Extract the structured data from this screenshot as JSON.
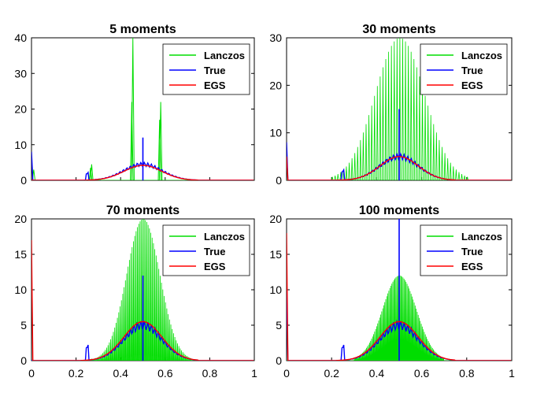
{
  "chart_data": [
    {
      "type": "line",
      "title": "5 moments",
      "xlim": [
        0,
        1
      ],
      "ylim": [
        0,
        40
      ],
      "yticks": [
        0,
        10,
        20,
        30,
        40
      ],
      "xticks": [],
      "legend": {
        "placement": "top-right",
        "entries": [
          "Lanczos",
          "True",
          "EGS"
        ]
      },
      "series": [
        {
          "name": "Lanczos",
          "color": "#00dd00",
          "style": "spikes",
          "x": [
            0.01,
            0.265,
            0.27,
            0.45,
            0.455,
            0.575,
            0.58
          ],
          "values": [
            3,
            3.5,
            4.5,
            22,
            40,
            17,
            22
          ]
        },
        {
          "name": "True",
          "color": "#0000ff",
          "style": "density",
          "peak_x": 0.5,
          "peak_y": 4.5,
          "spike_x": 0.5,
          "spike_y": 12,
          "edge_y": 8
        },
        {
          "name": "EGS",
          "color": "#ff0000",
          "style": "density",
          "peak_x": 0.5,
          "peak_y": 4.2,
          "edge_y": 0
        }
      ]
    },
    {
      "type": "line",
      "title": "30 moments",
      "xlim": [
        0,
        1
      ],
      "ylim": [
        0,
        30
      ],
      "yticks": [
        0,
        10,
        20,
        30
      ],
      "xticks": [],
      "legend": {
        "placement": "top-right",
        "entries": [
          "Lanczos",
          "True",
          "EGS"
        ]
      },
      "series": [
        {
          "name": "Lanczos",
          "color": "#00dd00",
          "style": "comb",
          "center": 0.5,
          "spread": 0.11,
          "peak": 30,
          "step": 0.0125,
          "x_range": [
            0.2,
            0.8
          ]
        },
        {
          "name": "True",
          "color": "#0000ff",
          "style": "density",
          "peak_x": 0.5,
          "peak_y": 5,
          "spike_x": 0.5,
          "spike_y": 15,
          "edge_y": 8
        },
        {
          "name": "EGS",
          "color": "#ff0000",
          "style": "density",
          "peak_x": 0.5,
          "peak_y": 5,
          "edge_y": 5
        }
      ]
    },
    {
      "type": "line",
      "title": "70 moments",
      "xlim": [
        0,
        1
      ],
      "ylim": [
        0,
        20
      ],
      "yticks": [
        0,
        5,
        10,
        15,
        20
      ],
      "xticks": [
        "0",
        "0.2",
        "0.4",
        "0.6",
        "0.8",
        "1"
      ],
      "legend": {
        "placement": "top-right",
        "entries": [
          "Lanczos",
          "True",
          "EGS"
        ]
      },
      "series": [
        {
          "name": "Lanczos",
          "color": "#00dd00",
          "style": "comb",
          "center": 0.5,
          "spread": 0.075,
          "peak": 20,
          "step": 0.006,
          "x_range": [
            0.24,
            0.72
          ]
        },
        {
          "name": "True",
          "color": "#0000ff",
          "style": "density",
          "peak_x": 0.5,
          "peak_y": 5,
          "spike_x": 0.5,
          "spike_y": 12,
          "edge_y": 0
        },
        {
          "name": "EGS",
          "color": "#ff0000",
          "style": "density",
          "peak_x": 0.5,
          "peak_y": 5.5,
          "edge_y": 17
        }
      ]
    },
    {
      "type": "line",
      "title": "100 moments",
      "xlim": [
        0,
        1
      ],
      "ylim": [
        0,
        20
      ],
      "yticks": [
        0,
        5,
        10,
        15,
        20
      ],
      "xticks": [
        "0",
        "0.2",
        "0.4",
        "0.6",
        "0.8",
        "1"
      ],
      "legend": {
        "placement": "top-right",
        "entries": [
          "Lanczos",
          "True",
          "EGS"
        ]
      },
      "series": [
        {
          "name": "Lanczos",
          "color": "#00dd00",
          "style": "comb",
          "center": 0.5,
          "spread": 0.075,
          "peak": 12,
          "step": 0.0045,
          "x_range": [
            0.3,
            0.7
          ]
        },
        {
          "name": "True",
          "color": "#0000ff",
          "style": "density",
          "peak_x": 0.5,
          "peak_y": 5,
          "spike_x": 0.5,
          "spike_y": 20,
          "edge_y": 10
        },
        {
          "name": "EGS",
          "color": "#ff0000",
          "style": "density",
          "peak_x": 0.5,
          "peak_y": 5.5,
          "edge_y": 18
        }
      ]
    }
  ]
}
